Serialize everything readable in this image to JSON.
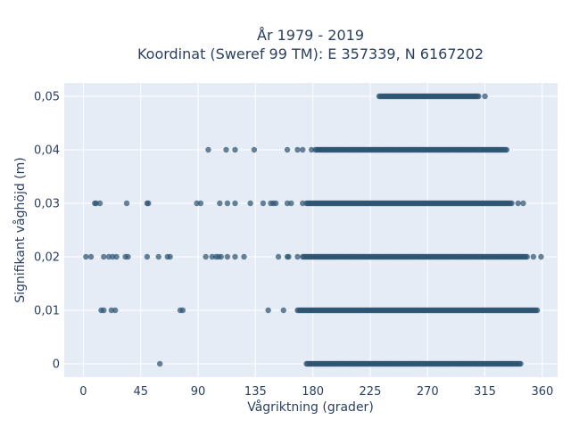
{
  "chart_data": {
    "type": "scatter",
    "title_line1": "År 1979 - 2019",
    "title_line2": "Koordinat (Sweref 99 TM): E 357339, N 6167202",
    "xlabel": "Vågriktning (grader)",
    "ylabel": "Signifikant våghöjd (m)",
    "xlim": [
      -15,
      372
    ],
    "ylim": [
      -0.0025,
      0.0525
    ],
    "xticks": [
      0,
      45,
      90,
      135,
      180,
      225,
      270,
      315,
      360
    ],
    "xtick_labels": [
      "0",
      "45",
      "90",
      "135",
      "180",
      "225",
      "270",
      "315",
      "360"
    ],
    "yticks": [
      0,
      0.01,
      0.02,
      0.03,
      0.04,
      0.05
    ],
    "ytick_labels": [
      "0",
      "0,01",
      "0,02",
      "0,03",
      "0,04",
      "0,05"
    ],
    "grid": true,
    "marker_color": "#2e5571",
    "plot_bg": "#e5ecf6",
    "series": [
      {
        "scatter_points": [
          {
            "x": 60,
            "y": 0.0
          },
          {
            "x": 14,
            "y": 0.01
          },
          {
            "x": 16,
            "y": 0.01
          },
          {
            "x": 22,
            "y": 0.01
          },
          {
            "x": 25,
            "y": 0.01
          },
          {
            "x": 76,
            "y": 0.01
          },
          {
            "x": 78,
            "y": 0.01
          },
          {
            "x": 145,
            "y": 0.01
          },
          {
            "x": 157,
            "y": 0.01
          },
          {
            "x": 2,
            "y": 0.02
          },
          {
            "x": 6,
            "y": 0.02
          },
          {
            "x": 16,
            "y": 0.02
          },
          {
            "x": 20,
            "y": 0.02
          },
          {
            "x": 23,
            "y": 0.02
          },
          {
            "x": 26,
            "y": 0.02
          },
          {
            "x": 33,
            "y": 0.02
          },
          {
            "x": 35,
            "y": 0.02
          },
          {
            "x": 50,
            "y": 0.02
          },
          {
            "x": 59,
            "y": 0.02
          },
          {
            "x": 66,
            "y": 0.02
          },
          {
            "x": 68,
            "y": 0.02
          },
          {
            "x": 96,
            "y": 0.02
          },
          {
            "x": 101,
            "y": 0.02
          },
          {
            "x": 104,
            "y": 0.02
          },
          {
            "x": 106,
            "y": 0.02
          },
          {
            "x": 108,
            "y": 0.02
          },
          {
            "x": 113,
            "y": 0.02
          },
          {
            "x": 119,
            "y": 0.02
          },
          {
            "x": 126,
            "y": 0.02
          },
          {
            "x": 153,
            "y": 0.02
          },
          {
            "x": 160,
            "y": 0.02
          },
          {
            "x": 161,
            "y": 0.02
          },
          {
            "x": 168,
            "y": 0.02
          },
          {
            "x": 353,
            "y": 0.02
          },
          {
            "x": 359,
            "y": 0.02
          },
          {
            "x": 9,
            "y": 0.03
          },
          {
            "x": 10,
            "y": 0.03
          },
          {
            "x": 13,
            "y": 0.03
          },
          {
            "x": 34,
            "y": 0.03
          },
          {
            "x": 50,
            "y": 0.03
          },
          {
            "x": 51,
            "y": 0.03
          },
          {
            "x": 89,
            "y": 0.03
          },
          {
            "x": 92,
            "y": 0.03
          },
          {
            "x": 107,
            "y": 0.03
          },
          {
            "x": 113,
            "y": 0.03
          },
          {
            "x": 119,
            "y": 0.03
          },
          {
            "x": 131,
            "y": 0.03
          },
          {
            "x": 141,
            "y": 0.03
          },
          {
            "x": 147,
            "y": 0.03
          },
          {
            "x": 149,
            "y": 0.03
          },
          {
            "x": 151,
            "y": 0.03
          },
          {
            "x": 160,
            "y": 0.03
          },
          {
            "x": 163,
            "y": 0.03
          },
          {
            "x": 172,
            "y": 0.03
          },
          {
            "x": 341,
            "y": 0.03
          },
          {
            "x": 345,
            "y": 0.03
          },
          {
            "x": 98,
            "y": 0.04
          },
          {
            "x": 112,
            "y": 0.04
          },
          {
            "x": 119,
            "y": 0.04
          },
          {
            "x": 134,
            "y": 0.04
          },
          {
            "x": 160,
            "y": 0.04
          },
          {
            "x": 168,
            "y": 0.04
          },
          {
            "x": 172,
            "y": 0.04
          },
          {
            "x": 179,
            "y": 0.04
          },
          {
            "x": 315,
            "y": 0.05
          }
        ],
        "dense_ranges": [
          {
            "y": 0.0,
            "x_min": 175,
            "x_max": 343
          },
          {
            "y": 0.01,
            "x_min": 168,
            "x_max": 356
          },
          {
            "y": 0.02,
            "x_min": 172,
            "x_max": 348
          },
          {
            "y": 0.03,
            "x_min": 175,
            "x_max": 336
          },
          {
            "y": 0.04,
            "x_min": 182,
            "x_max": 332
          },
          {
            "y": 0.05,
            "x_min": 232,
            "x_max": 310
          }
        ]
      }
    ]
  }
}
